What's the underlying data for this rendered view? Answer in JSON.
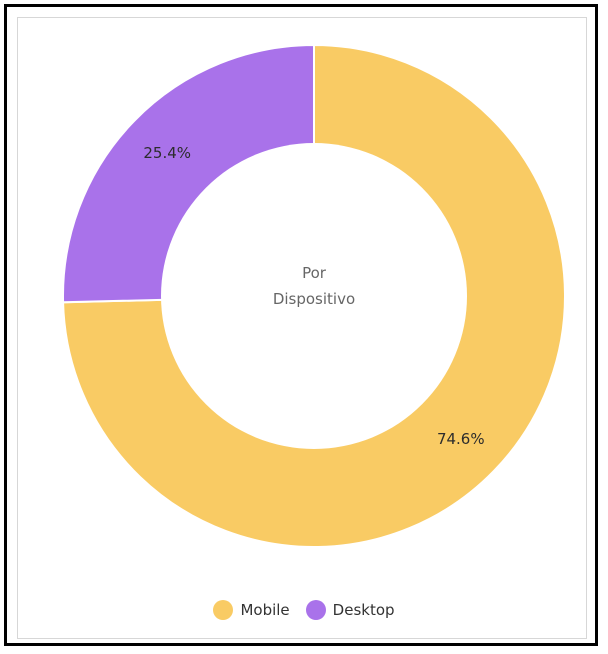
{
  "colors": {
    "mobile": "#F9CB64",
    "desktop": "#A972EA",
    "hole": "#ffffff",
    "label": "#2c2c2c",
    "center_text": "#666666"
  },
  "chart_data": {
    "type": "pie",
    "variant": "donut",
    "center_label_line1": "Por",
    "center_label_line2": "Dispositivo",
    "start": "top",
    "direction": "clockwise",
    "categories": [
      "Mobile",
      "Desktop"
    ],
    "values": [
      74.6,
      25.4
    ],
    "value_labels": [
      "74.6%",
      "25.4%"
    ],
    "legend_position": "bottom"
  }
}
